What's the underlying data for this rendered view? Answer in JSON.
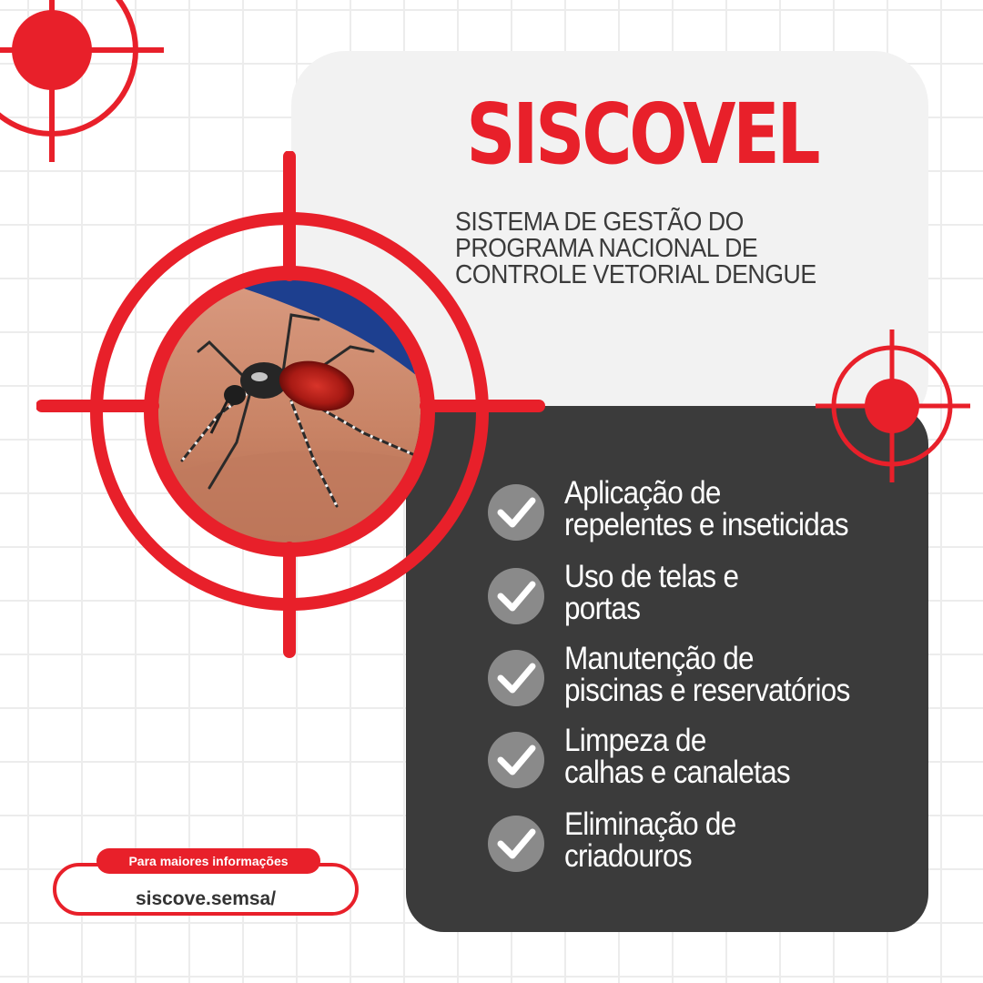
{
  "header": {
    "title": "SISCOVEL",
    "subtitle_lines": [
      "SISTEMA DE GESTÃO DO",
      "PROGRAMA NACIONAL DE",
      "CONTROLE VETORIAL DENGUE"
    ]
  },
  "checklist": {
    "items": [
      {
        "lines": [
          "Aplicação de",
          "repelentes e inseticidas"
        ]
      },
      {
        "lines": [
          "Uso de telas e",
          "portas"
        ]
      },
      {
        "lines": [
          "Manutenção de",
          "piscinas e reservatórios"
        ]
      },
      {
        "lines": [
          "Limpeza de",
          "calhas e canaletas"
        ]
      },
      {
        "lines": [
          "Eliminação de",
          "criadouros"
        ]
      }
    ],
    "icon": "checkmark-icon"
  },
  "footer": {
    "info_label": "Para maiores informações",
    "url": "siscove.semsa/"
  },
  "colors": {
    "accent_red": "#e8202a",
    "dark_panel": "#3b3b3b",
    "light_panel": "#f2f2f2",
    "check_circle": "#8a8a8a"
  },
  "icons": [
    "crosshair-icon",
    "mosquito-photo",
    "checkmark-icon"
  ]
}
